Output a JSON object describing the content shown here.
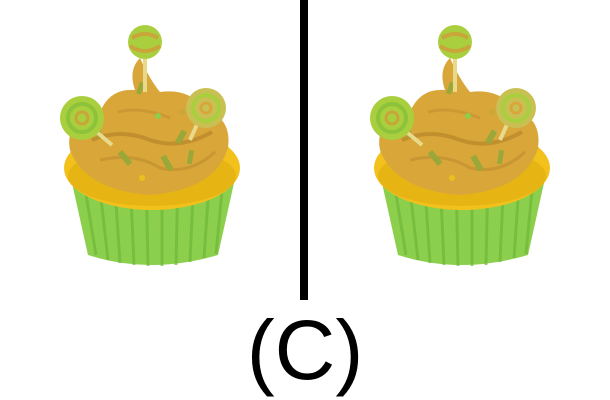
{
  "figure": {
    "label": "(C)",
    "panels": [
      {
        "id": "left",
        "subject": "cupcake-with-lollipops"
      },
      {
        "id": "right",
        "subject": "cupcake-with-lollipops"
      }
    ],
    "colors": {
      "liner": "#8ccf4d",
      "liner_stripe": "#6fb83a",
      "cake": "#f2c11b",
      "frosting": "#d9a63a",
      "frosting_dark": "#b8862a",
      "lollipop": "#a9cf3e",
      "lollipop_swirl": "#c9a53a",
      "stick": "#e9d98a",
      "divider": "#000000"
    }
  }
}
